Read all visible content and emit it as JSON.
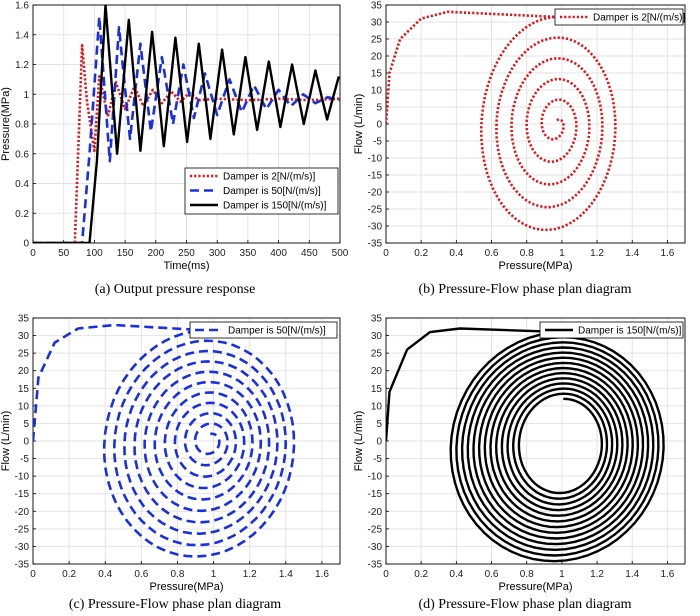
{
  "figure": {
    "captions": [
      "(a) Output pressure response",
      "(b) Pressure-Flow phase plan diagram",
      "(c) Pressure-Flow phase plan diagram",
      "(d) Pressure-Flow phase plan diagram"
    ]
  },
  "chart_data": [
    {
      "id": "a",
      "type": "line",
      "xlabel": "Time(ms)",
      "ylabel": "Pressure(MPa)",
      "xlim": [
        0,
        500
      ],
      "ylim": [
        0,
        1.6
      ],
      "xticks": [
        0,
        50,
        100,
        150,
        200,
        250,
        300,
        350,
        400,
        450,
        500
      ],
      "yticks": [
        0,
        0.2,
        0.4,
        0.6,
        0.8,
        1.0,
        1.2,
        1.4,
        1.6
      ],
      "ytick_labels": [
        "0",
        "0.2",
        "0.4",
        "0.6",
        "0.8",
        "1",
        "1.2",
        "1.4",
        "1.6"
      ],
      "grid": true,
      "legend_position": "lower-right",
      "series": [
        {
          "name": "Damper is 2[N/(m/s)]",
          "color": "#e0161b",
          "dash": "dotted",
          "x": [
            0,
            68,
            80,
            88,
            100,
            108,
            122,
            135,
            150,
            165,
            180,
            195,
            210,
            225,
            240,
            255,
            270,
            300,
            350,
            400,
            450,
            500
          ],
          "y": [
            0,
            0,
            1.33,
            0.95,
            0.62,
            1.12,
            0.85,
            1.08,
            0.9,
            1.05,
            0.92,
            1.03,
            0.94,
            1.02,
            0.95,
            1.01,
            0.96,
            0.97,
            0.96,
            0.97,
            0.96,
            0.97
          ]
        },
        {
          "name": "Damper is 50[N/(m/s)]",
          "color": "#1a2fe0",
          "dash": "dashed",
          "x": [
            0,
            80,
            92,
            108,
            125,
            140,
            158,
            175,
            192,
            210,
            228,
            245,
            262,
            280,
            300,
            320,
            340,
            360,
            380,
            400,
            420,
            440,
            460,
            480,
            500
          ],
          "y": [
            0,
            0,
            0.6,
            1.52,
            0.55,
            1.45,
            0.7,
            1.34,
            0.75,
            1.25,
            0.8,
            1.2,
            0.84,
            1.14,
            0.86,
            1.1,
            0.88,
            1.06,
            0.9,
            1.03,
            0.92,
            1.0,
            0.94,
            0.98,
            0.96
          ]
        },
        {
          "name": "Damper is 150[N/(m/s)]",
          "color": "#000000",
          "dash": "solid",
          "x": [
            0,
            92,
            104,
            118,
            137,
            156,
            175,
            194,
            213,
            232,
            251,
            270,
            289,
            308,
            327,
            346,
            365,
            384,
            403,
            422,
            441,
            460,
            479,
            498
          ],
          "y": [
            0,
            0,
            0.55,
            1.6,
            0.6,
            1.5,
            0.62,
            1.42,
            0.65,
            1.38,
            0.68,
            1.34,
            0.7,
            1.3,
            0.73,
            1.25,
            0.76,
            1.22,
            0.78,
            1.2,
            0.8,
            1.16,
            0.83,
            1.12
          ]
        }
      ]
    },
    {
      "id": "b",
      "type": "line",
      "xlabel": "Pressure(MPa)",
      "ylabel": "Flow (L/min)",
      "xlim": [
        0,
        1.7
      ],
      "ylim": [
        -35,
        35
      ],
      "xticks": [
        0,
        0.2,
        0.4,
        0.6,
        0.8,
        1.0,
        1.2,
        1.4,
        1.6
      ],
      "xtick_labels": [
        "0",
        "0.2",
        "0.4",
        "0.6",
        "0.8",
        "1",
        "1.2",
        "1.4",
        "1.6"
      ],
      "yticks": [
        -35,
        -30,
        -25,
        -20,
        -15,
        -10,
        -5,
        0,
        5,
        10,
        15,
        20,
        25,
        30,
        35
      ],
      "grid": true,
      "legend_position": "top-right",
      "series": [
        {
          "name": "Damper is 2[N/(m/s)]",
          "color": "#e0161b",
          "dash": "dotted",
          "spiral": {
            "start": [
              0,
              0
            ],
            "lead": [
              [
                0.02,
                15
              ],
              [
                0.08,
                25
              ],
              [
                0.2,
                31
              ],
              [
                0.35,
                33
              ]
            ],
            "center": [
              0.97,
              0
            ],
            "r0": [
              0.42,
              33
            ],
            "r1": [
              0.02,
              1
            ],
            "skew": 0.18,
            "turns": 5,
            "dx": 0.06,
            "dy": -3
          }
        }
      ]
    },
    {
      "id": "c",
      "type": "line",
      "xlabel": "Pressure(MPa)",
      "ylabel": "Flow (L/min)",
      "xlim": [
        0,
        1.7
      ],
      "ylim": [
        -35,
        35
      ],
      "xticks": [
        0,
        0.2,
        0.4,
        0.6,
        0.8,
        1.0,
        1.2,
        1.4,
        1.6
      ],
      "xtick_labels": [
        "0",
        "0.2",
        "0.4",
        "0.6",
        "0.8",
        "1",
        "1.2",
        "1.4",
        "1.6"
      ],
      "yticks": [
        -35,
        -30,
        -25,
        -20,
        -15,
        -10,
        -5,
        0,
        5,
        10,
        15,
        20,
        25,
        30,
        35
      ],
      "grid": true,
      "legend_position": "top-right",
      "series": [
        {
          "name": "Damper is 50[N/(m/s)]",
          "color": "#1a2fe0",
          "dash": "dashed",
          "spiral": {
            "start": [
              0,
              0
            ],
            "lead": [
              [
                0.03,
                18
              ],
              [
                0.12,
                28
              ],
              [
                0.25,
                32
              ],
              [
                0.45,
                33
              ]
            ],
            "center": [
              0.98,
              0
            ],
            "r0": [
              0.55,
              33
            ],
            "r1": [
              0.04,
              2
            ],
            "skew": 0.15,
            "turns": 10,
            "dx": 0.1,
            "dy": -3
          }
        }
      ]
    },
    {
      "id": "d",
      "type": "line",
      "xlabel": "Pressure(MPa)",
      "ylabel": "Flow (L/min)",
      "xlim": [
        0,
        1.7
      ],
      "ylim": [
        -35,
        35
      ],
      "xticks": [
        0,
        0.2,
        0.4,
        0.6,
        0.8,
        1.0,
        1.2,
        1.4,
        1.6
      ],
      "xtick_labels": [
        "0",
        "0.2",
        "0.4",
        "0.6",
        "0.8",
        "1",
        "1.2",
        "1.4",
        "1.6"
      ],
      "yticks": [
        -35,
        -30,
        -25,
        -20,
        -15,
        -10,
        -5,
        0,
        5,
        10,
        15,
        20,
        25,
        30,
        35
      ],
      "grid": true,
      "legend_position": "top-right",
      "series": [
        {
          "name": "Damper is 150[N/(m/s)]",
          "color": "#000000",
          "dash": "solid",
          "spiral": {
            "start": [
              0,
              0
            ],
            "lead": [
              [
                0.02,
                14
              ],
              [
                0.12,
                26
              ],
              [
                0.25,
                31
              ],
              [
                0.42,
                32
              ]
            ],
            "center": [
              1.0,
              -1
            ],
            "r0": [
              0.62,
              33
            ],
            "r1": [
              0.22,
              13
            ],
            "skew": 0.12,
            "turns": 13,
            "dx": 0.04,
            "dy": -2
          }
        }
      ]
    }
  ]
}
